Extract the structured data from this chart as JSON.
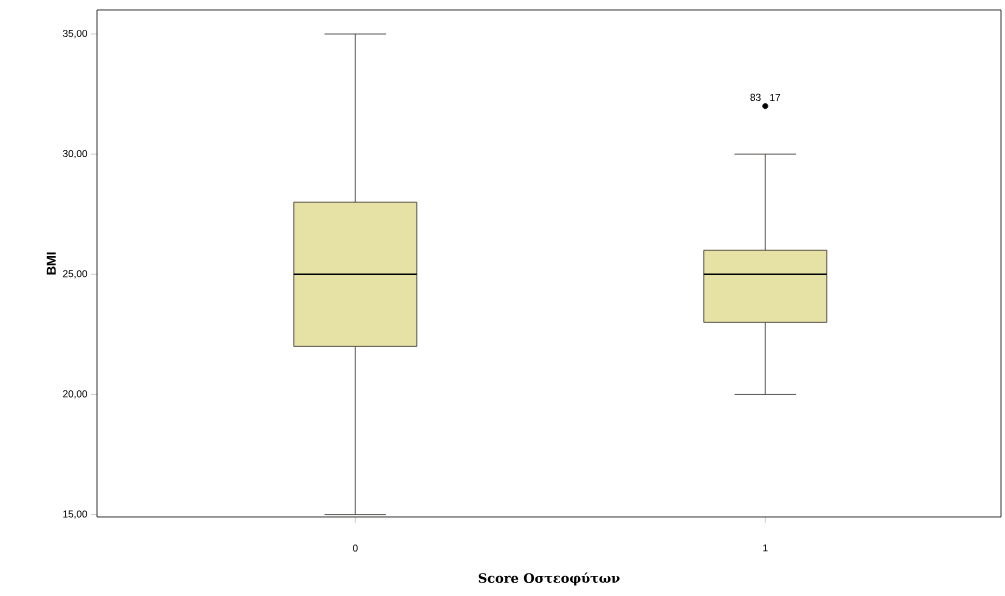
{
  "chart_data": {
    "type": "box",
    "xlabel": "Score Οστεοφύτων",
    "ylabel": "BMI",
    "categories": [
      "0",
      "1"
    ],
    "boxes": [
      {
        "low": 15,
        "q1": 22,
        "median": 25,
        "q3": 28,
        "high": 35
      },
      {
        "low": 20,
        "q1": 23,
        "median": 25,
        "q3": 26,
        "high": 30,
        "outliers": [
          32
        ]
      }
    ],
    "color": "#e6e2a6",
    "ylim": [
      14.9,
      36
    ],
    "yticks": [
      {
        "value": 15,
        "label": "15,00"
      },
      {
        "value": 20,
        "label": "20,00"
      },
      {
        "value": 25,
        "label": "25,00"
      },
      {
        "value": 30,
        "label": "30,00"
      },
      {
        "value": 35,
        "label": "35,00"
      }
    ],
    "annotations": [
      "83",
      "17"
    ]
  }
}
